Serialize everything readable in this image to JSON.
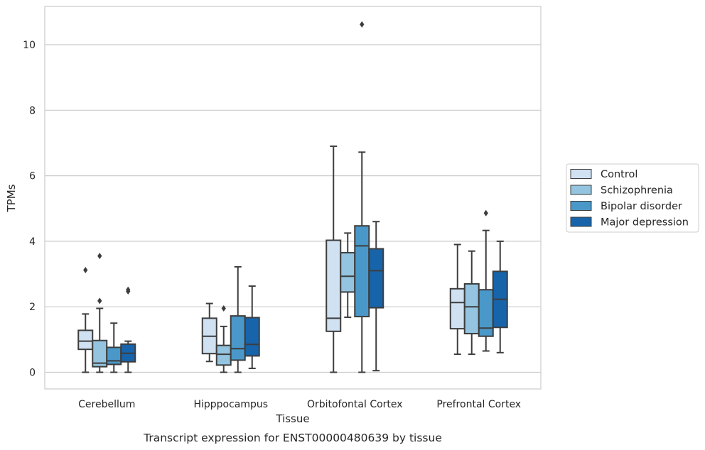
{
  "chart_data": {
    "type": "box",
    "caption": "Transcript expression for ENST00000480639 by tissue",
    "xlabel": "Tissue",
    "ylabel": "TPMs",
    "ylim": [
      -0.5,
      11.2
    ],
    "yticks": [
      0,
      2,
      4,
      6,
      8,
      10
    ],
    "grid": "horizontal",
    "legend_position": "right",
    "categories": [
      "Cerebellum",
      "Hipppocampus",
      "Orbitofontal Cortex",
      "Prefrontal Cortex"
    ],
    "series": [
      {
        "name": "Control",
        "color": "#d0e1f2",
        "boxes": [
          {
            "whislo": 0.0,
            "q1": 0.7,
            "med": 0.95,
            "q3": 1.28,
            "whishi": 1.78,
            "fliers": [
              3.12
            ]
          },
          {
            "whislo": 0.33,
            "q1": 0.57,
            "med": 1.1,
            "q3": 1.65,
            "whishi": 2.1,
            "fliers": []
          },
          {
            "whislo": 0.0,
            "q1": 1.25,
            "med": 1.65,
            "q3": 4.03,
            "whishi": 6.9,
            "fliers": []
          },
          {
            "whislo": 0.55,
            "q1": 1.33,
            "med": 2.13,
            "q3": 2.55,
            "whishi": 3.9,
            "fliers": []
          }
        ]
      },
      {
        "name": "Schizophrenia",
        "color": "#94c4df",
        "boxes": [
          {
            "whislo": 0.0,
            "q1": 0.17,
            "med": 0.28,
            "q3": 0.97,
            "whishi": 1.95,
            "fliers": [
              2.18,
              3.55
            ]
          },
          {
            "whislo": 0.0,
            "q1": 0.22,
            "med": 0.55,
            "q3": 0.82,
            "whishi": 1.4,
            "fliers": [
              1.95
            ]
          },
          {
            "whislo": 1.68,
            "q1": 2.45,
            "med": 2.93,
            "q3": 3.65,
            "whishi": 4.25,
            "fliers": []
          },
          {
            "whislo": 0.55,
            "q1": 1.18,
            "med": 2.0,
            "q3": 2.7,
            "whishi": 3.7,
            "fliers": []
          }
        ]
      },
      {
        "name": "Bipolar disorder",
        "color": "#4a98c9",
        "boxes": [
          {
            "whislo": 0.0,
            "q1": 0.24,
            "med": 0.35,
            "q3": 0.76,
            "whishi": 1.5,
            "fliers": []
          },
          {
            "whislo": 0.0,
            "q1": 0.37,
            "med": 0.72,
            "q3": 1.72,
            "whishi": 3.22,
            "fliers": []
          },
          {
            "whislo": 0.0,
            "q1": 1.7,
            "med": 3.86,
            "q3": 4.47,
            "whishi": 6.72,
            "fliers": [
              10.62
            ]
          },
          {
            "whislo": 0.65,
            "q1": 1.1,
            "med": 1.35,
            "q3": 2.52,
            "whishi": 4.33,
            "fliers": [
              4.86
            ]
          }
        ]
      },
      {
        "name": "Major depression",
        "color": "#1764ab",
        "boxes": [
          {
            "whislo": 0.0,
            "q1": 0.32,
            "med": 0.58,
            "q3": 0.86,
            "whishi": 0.95,
            "fliers": [
              2.47,
              2.52
            ]
          },
          {
            "whislo": 0.12,
            "q1": 0.5,
            "med": 0.85,
            "q3": 1.67,
            "whishi": 2.63,
            "fliers": []
          },
          {
            "whislo": 0.05,
            "q1": 1.97,
            "med": 3.1,
            "q3": 3.77,
            "whishi": 4.6,
            "fliers": []
          },
          {
            "whislo": 0.6,
            "q1": 1.37,
            "med": 2.23,
            "q3": 3.08,
            "whishi": 4.0,
            "fliers": []
          }
        ]
      }
    ]
  }
}
